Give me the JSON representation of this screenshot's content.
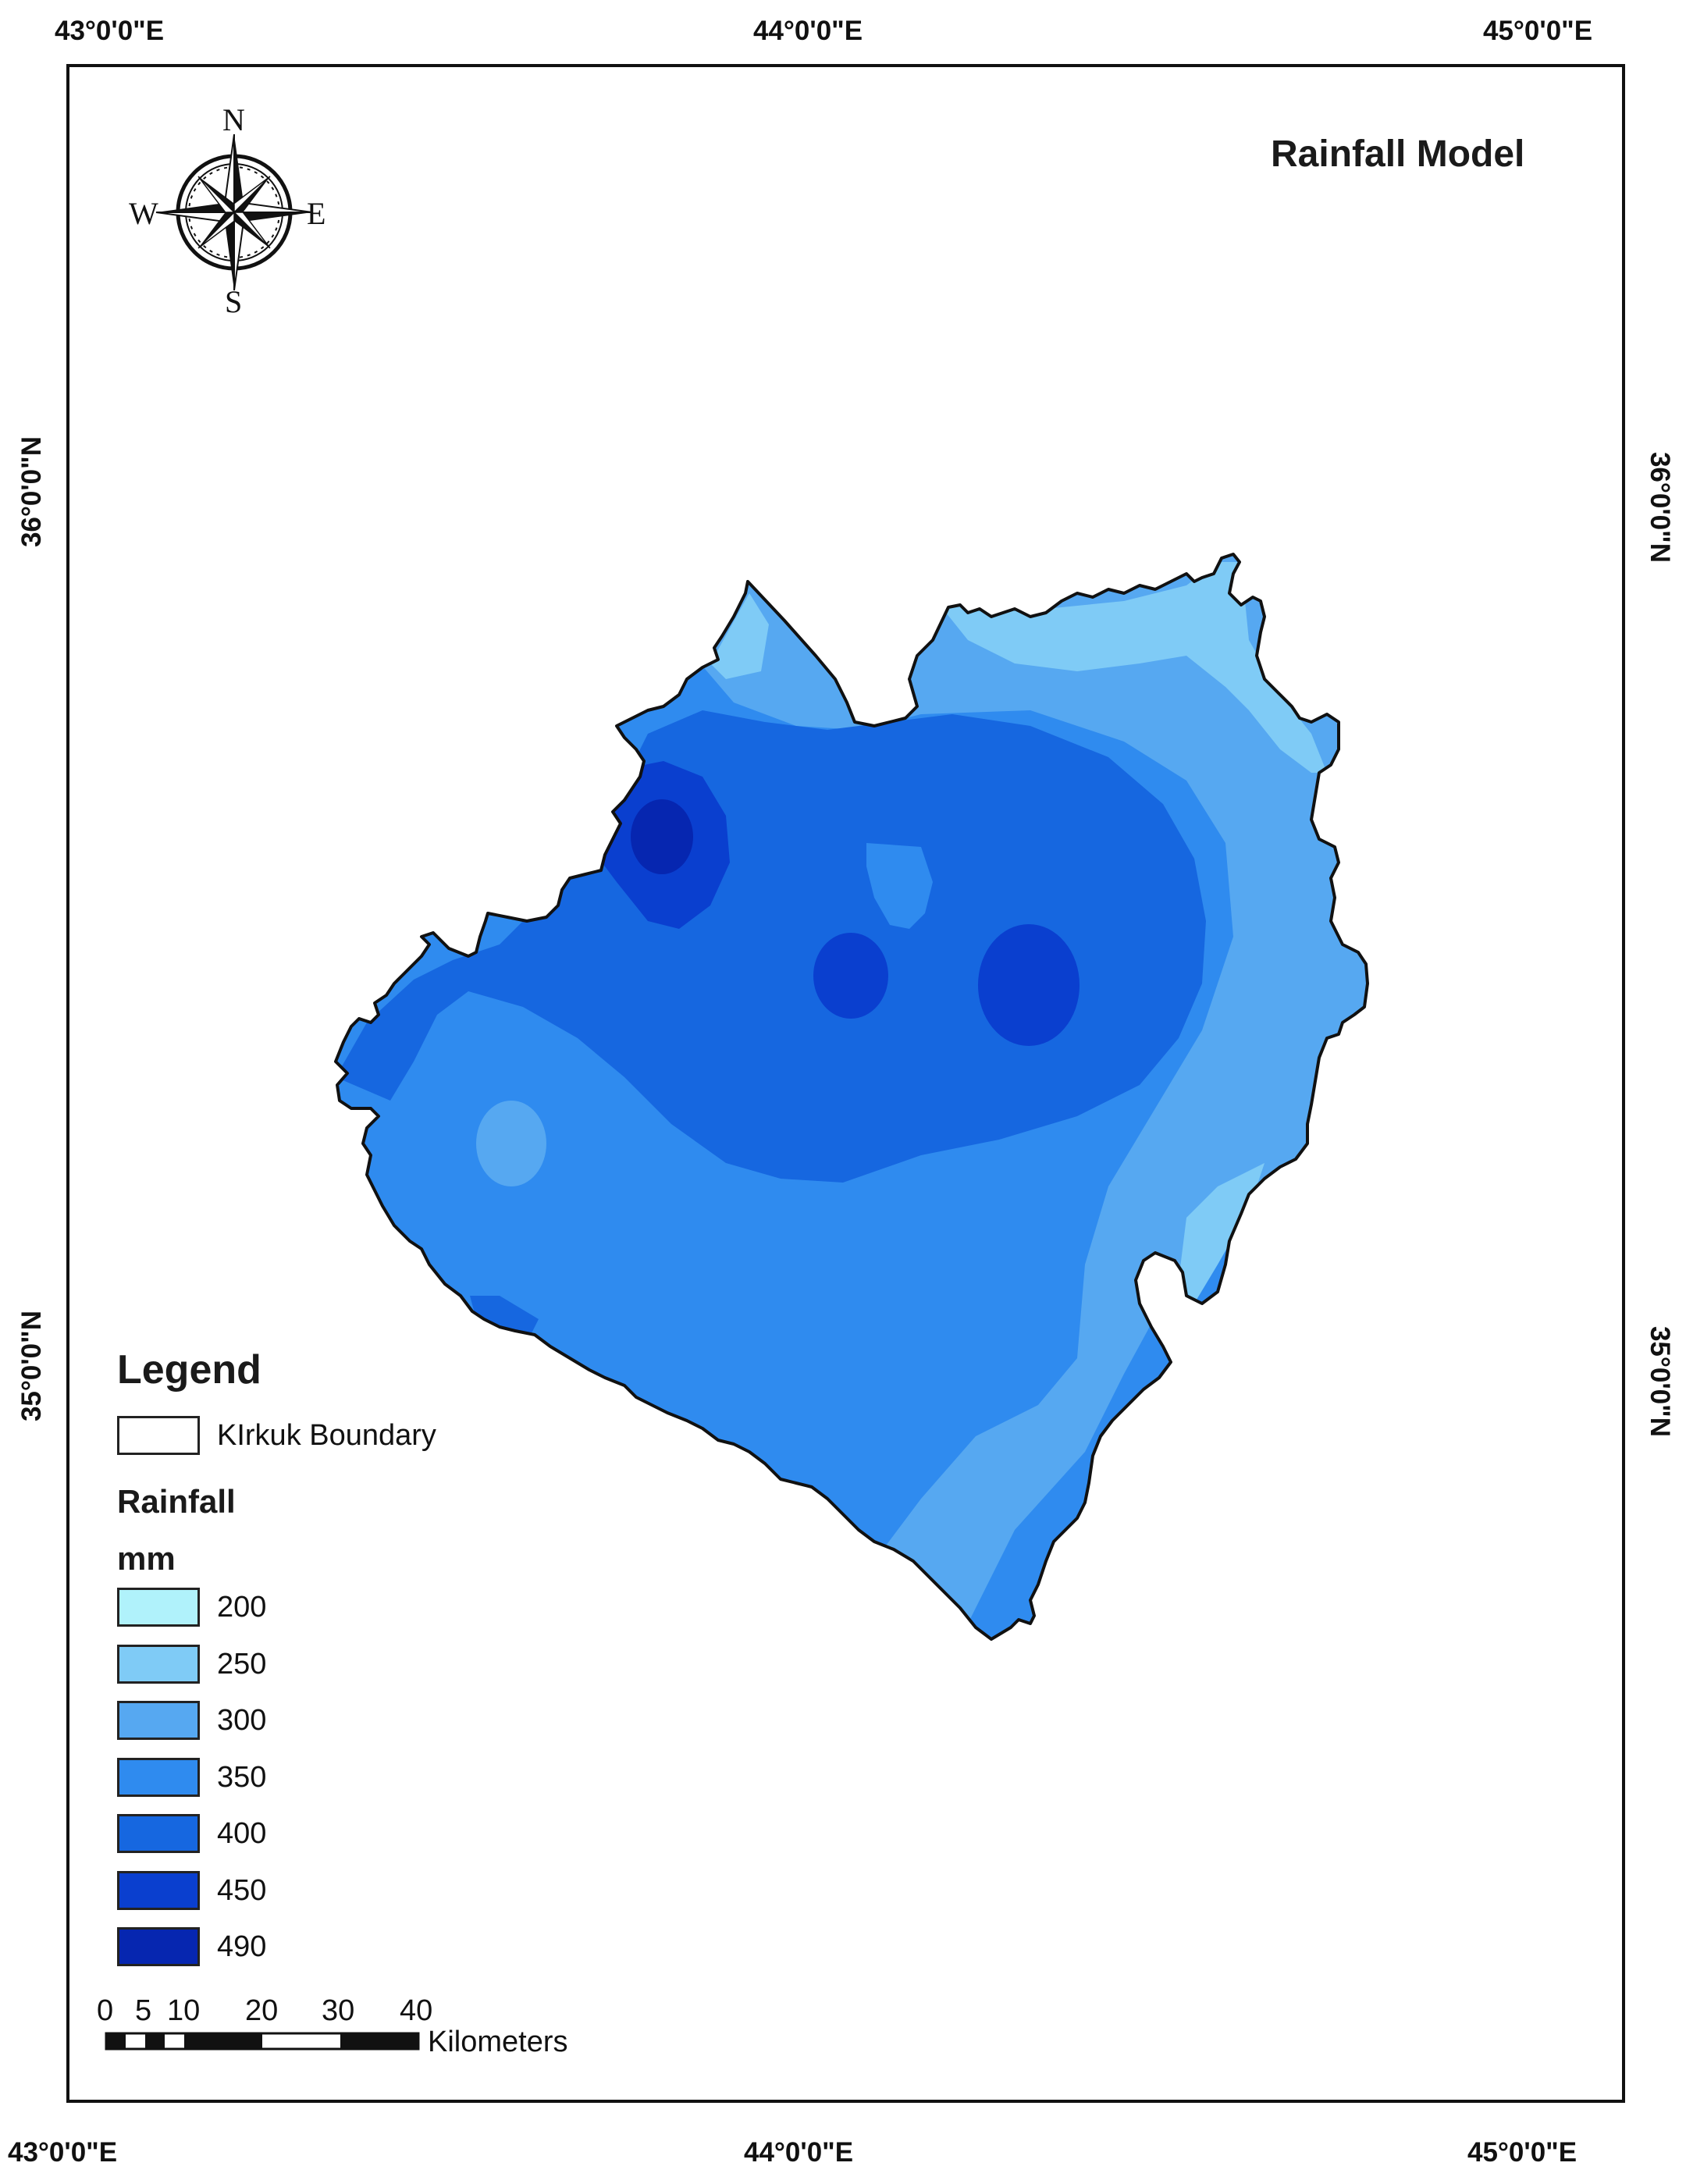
{
  "map": {
    "title": "Rainfall Model",
    "lon_labels_top": [
      "43°0'0\"E",
      "44°0'0\"E",
      "45°0'0\"E"
    ],
    "lon_labels_bottom": [
      "43°0'0\"E",
      "44°0'0\"E",
      "45°0'0\"E"
    ],
    "lat_labels_left": [
      "36°0'0\"N",
      "35°0'0\"N"
    ],
    "lat_labels_right": [
      "36°0'0\"N",
      "35°0'0\"N"
    ]
  },
  "compass": {
    "n": "N",
    "s": "S",
    "e": "E",
    "w": "W"
  },
  "legend": {
    "title": "Legend",
    "boundary_label": "KIrkuk Boundary",
    "rainfall_label": "Rainfall",
    "unit_label": "mm",
    "classes": [
      {
        "value": "200",
        "color": "#b0f2fb"
      },
      {
        "value": "250",
        "color": "#7fcbf6"
      },
      {
        "value": "300",
        "color": "#56a8f1"
      },
      {
        "value": "350",
        "color": "#2f8bef"
      },
      {
        "value": "400",
        "color": "#1667e0"
      },
      {
        "value": "450",
        "color": "#0a3fcf"
      },
      {
        "value": "490",
        "color": "#0626b0"
      }
    ]
  },
  "scale_bar": {
    "ticks": [
      "0",
      "5",
      "10",
      "20",
      "30",
      "40"
    ],
    "unit": "Kilometers"
  }
}
